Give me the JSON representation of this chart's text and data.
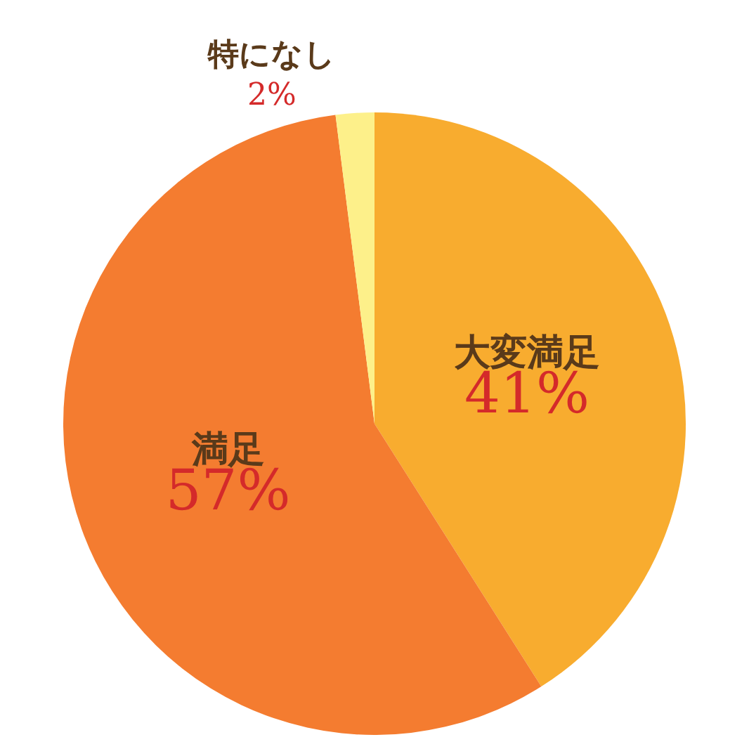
{
  "chart_data": {
    "type": "pie",
    "categories": [
      "大変満足",
      "満足",
      "特になし"
    ],
    "values": [
      41,
      57,
      2
    ],
    "value_labels": [
      "41%",
      "57%",
      "2%"
    ],
    "colors": [
      "#f8ac2f",
      "#f47c30",
      "#fdf08a"
    ]
  }
}
